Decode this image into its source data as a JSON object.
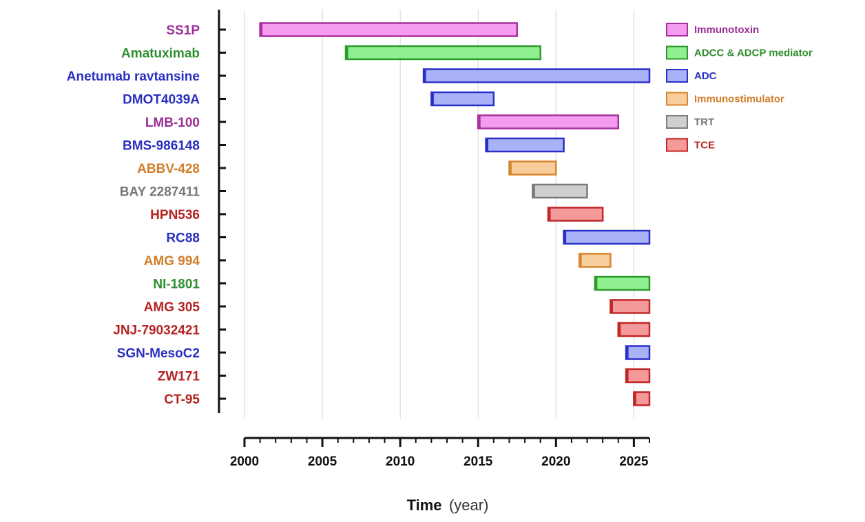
{
  "chart_data": {
    "type": "gantt",
    "xlabel": "Time",
    "xlabel_unit": "(year)",
    "xlim": [
      2000,
      2026
    ],
    "xticks": [
      2000,
      2005,
      2010,
      2015,
      2020,
      2025
    ],
    "grid": "vertical",
    "legend_position": "right",
    "categories": [
      {
        "key": "immunotoxin",
        "label": "Immunotoxin",
        "fill": "#f59cf0",
        "stroke": "#a8309f",
        "text": "#9b2f97"
      },
      {
        "key": "adcc",
        "label": "ADCC & ADCP mediator",
        "fill": "#8ef08e",
        "stroke": "#2e9a2e",
        "text": "#2f8f2f"
      },
      {
        "key": "adc",
        "label": "ADC",
        "fill": "#aab2f7",
        "stroke": "#2a2fc8",
        "text": "#2a2fc0"
      },
      {
        "key": "immunostimulator",
        "label": "Immunostimulator",
        "fill": "#f8cf9c",
        "stroke": "#d6862e",
        "text": "#d07e2a"
      },
      {
        "key": "trt",
        "label": "TRT",
        "fill": "#cfcfcf",
        "stroke": "#7a7a7a",
        "text": "#777777"
      },
      {
        "key": "tce",
        "label": "TCE",
        "fill": "#f59a9a",
        "stroke": "#c22626",
        "text": "#b52424"
      }
    ],
    "rows": [
      {
        "name": "SS1P",
        "category": "immunotoxin",
        "start": 2001,
        "end": 2017.5
      },
      {
        "name": "Amatuximab",
        "category": "adcc",
        "start": 2006.5,
        "end": 2019
      },
      {
        "name": "Anetumab ravtansine",
        "category": "adc",
        "start": 2011.5,
        "end": 2026
      },
      {
        "name": "DMOT4039A",
        "category": "adc",
        "start": 2012,
        "end": 2016
      },
      {
        "name": "LMB-100",
        "category": "immunotoxin",
        "start": 2015,
        "end": 2024
      },
      {
        "name": "BMS-986148",
        "category": "adc",
        "start": 2015.5,
        "end": 2020.5
      },
      {
        "name": "ABBV-428",
        "category": "immunostimulator",
        "start": 2017,
        "end": 2020
      },
      {
        "name": "BAY 2287411",
        "category": "trt",
        "start": 2018.5,
        "end": 2022
      },
      {
        "name": "HPN536",
        "category": "tce",
        "start": 2019.5,
        "end": 2023
      },
      {
        "name": "RC88",
        "category": "adc",
        "start": 2020.5,
        "end": 2026
      },
      {
        "name": "AMG 994",
        "category": "immunostimulator",
        "start": 2021.5,
        "end": 2023.5
      },
      {
        "name": "NI-1801",
        "category": "adcc",
        "start": 2022.5,
        "end": 2026
      },
      {
        "name": "AMG 305",
        "category": "tce",
        "start": 2023.5,
        "end": 2026
      },
      {
        "name": "JNJ-79032421",
        "category": "tce",
        "start": 2024,
        "end": 2026
      },
      {
        "name": "SGN-MesoC2",
        "category": "adc",
        "start": 2024.5,
        "end": 2026
      },
      {
        "name": "ZW171",
        "category": "tce",
        "start": 2024.5,
        "end": 2026
      },
      {
        "name": "CT-95",
        "category": "tce",
        "start": 2025,
        "end": 2026
      }
    ]
  }
}
